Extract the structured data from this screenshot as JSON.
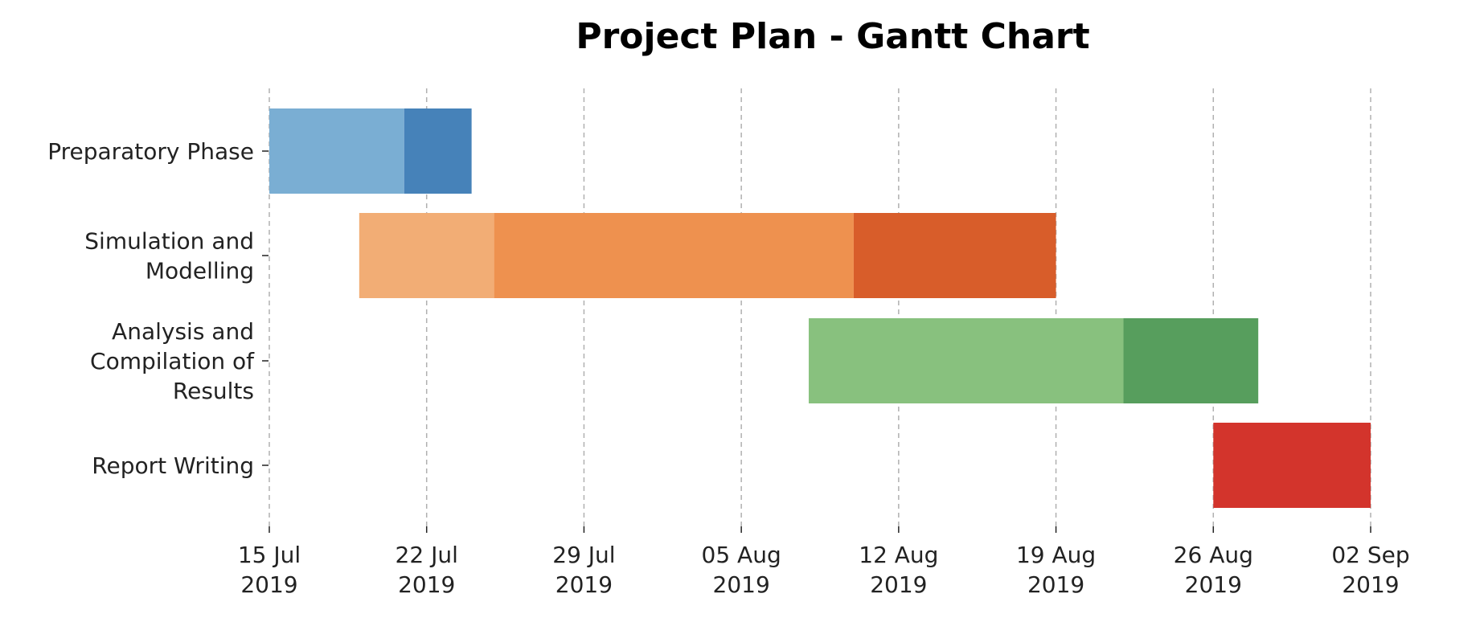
{
  "chart_data": {
    "type": "gantt",
    "title": "Project Plan - Gantt Chart",
    "xlabel": "",
    "ylabel": "",
    "x_axis": {
      "scale": "date",
      "range": [
        "2019-07-15",
        "2019-09-02"
      ],
      "ticks": [
        {
          "date": "2019-07-15",
          "label_line1": "15 Jul",
          "label_line2": "2019"
        },
        {
          "date": "2019-07-22",
          "label_line1": "22 Jul",
          "label_line2": "2019"
        },
        {
          "date": "2019-07-29",
          "label_line1": "29 Jul",
          "label_line2": "2019"
        },
        {
          "date": "2019-08-05",
          "label_line1": "05 Aug",
          "label_line2": "2019"
        },
        {
          "date": "2019-08-12",
          "label_line1": "12 Aug",
          "label_line2": "2019"
        },
        {
          "date": "2019-08-19",
          "label_line1": "19 Aug",
          "label_line2": "2019"
        },
        {
          "date": "2019-08-26",
          "label_line1": "26 Aug",
          "label_line2": "2019"
        },
        {
          "date": "2019-09-02",
          "label_line1": "02 Sep",
          "label_line2": "2019"
        }
      ],
      "grid": true
    },
    "tasks": [
      {
        "lines": [
          "Preparatory Phase"
        ],
        "segments": [
          {
            "start": "2019-07-15",
            "end": "2019-07-21",
            "color": "#7aaed3"
          },
          {
            "start": "2019-07-21",
            "end": "2019-07-24",
            "color": "#4682b9"
          }
        ]
      },
      {
        "lines": [
          "Simulation and",
          "Modelling"
        ],
        "segments": [
          {
            "start": "2019-07-19",
            "end": "2019-07-25",
            "color": "#f2ad75"
          },
          {
            "start": "2019-07-25",
            "end": "2019-08-10",
            "color": "#ee914f"
          },
          {
            "start": "2019-08-10",
            "end": "2019-08-19",
            "color": "#d85d2a"
          }
        ]
      },
      {
        "lines": [
          "Analysis and",
          "Compilation of",
          "Results"
        ],
        "segments": [
          {
            "start": "2019-08-08",
            "end": "2019-08-22",
            "color": "#88c17e"
          },
          {
            "start": "2019-08-22",
            "end": "2019-08-28",
            "color": "#579e5d"
          }
        ]
      },
      {
        "lines": [
          "Report Writing"
        ],
        "segments": [
          {
            "start": "2019-08-26",
            "end": "2019-09-02",
            "color": "#d3342c"
          }
        ]
      }
    ]
  }
}
